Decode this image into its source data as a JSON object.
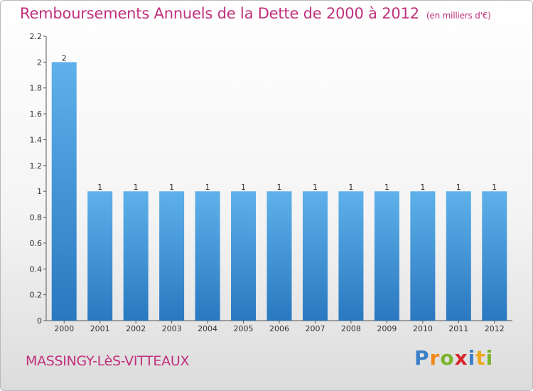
{
  "title": "Remboursements Annuels de la Dette de 2000 à 2012",
  "unit_label": "(en milliers d'€)",
  "commune": "MASSINGY-LèS-VITTEAUX",
  "logo_text": "Proxiti",
  "colors": {
    "bar_light": "#5aade8",
    "bar_dark": "#2b7bc4",
    "title": "#c0307c"
  },
  "chart_data": {
    "type": "bar",
    "title": "Remboursements Annuels de la Dette de 2000 à 2012",
    "xlabel": "",
    "ylabel": "",
    "categories": [
      "2000",
      "2001",
      "2002",
      "2003",
      "2004",
      "2005",
      "2006",
      "2007",
      "2008",
      "2009",
      "2010",
      "2011",
      "2012"
    ],
    "values": [
      2,
      1,
      1,
      1,
      1,
      1,
      1,
      1,
      1,
      1,
      1,
      1,
      1
    ],
    "data_labels": [
      "2",
      "1",
      "1",
      "1",
      "1",
      "1",
      "1",
      "1",
      "1",
      "1",
      "1",
      "1",
      "1"
    ],
    "ylim": [
      0,
      2.2
    ],
    "yticks": [
      0,
      0.2,
      0.4,
      0.6,
      0.8,
      1,
      1.2,
      1.4,
      1.6,
      1.8,
      2,
      2.2
    ],
    "ytick_labels": [
      "0",
      "0.2",
      "0.4",
      "0.6",
      "0.8",
      "1",
      "1.2",
      "1.4",
      "1.6",
      "1.8",
      "2",
      "2.2"
    ],
    "grid": false
  }
}
